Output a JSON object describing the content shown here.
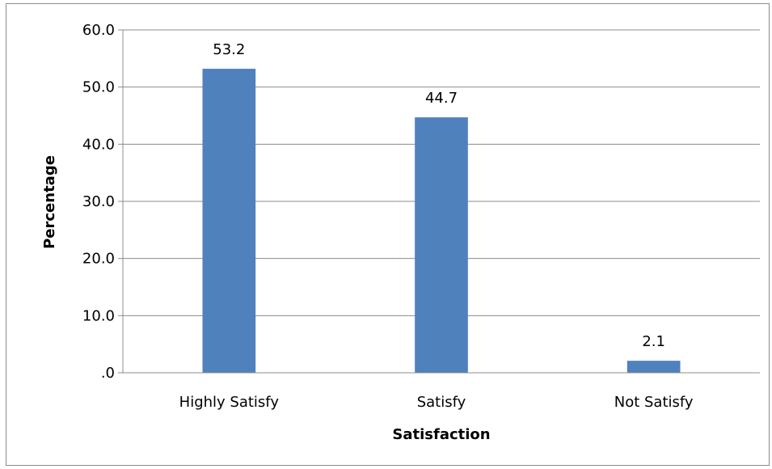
{
  "chart_data": {
    "type": "bar",
    "categories": [
      "Highly Satisfy",
      "Satisfy",
      "Not Satisfy"
    ],
    "values": [
      53.2,
      44.7,
      2.1
    ],
    "data_labels": [
      "53.2",
      "44.7",
      "2.1"
    ],
    "y_tick_labels": [
      ".0",
      "10.0",
      "20.0",
      "30.0",
      "40.0",
      "50.0",
      "60.0"
    ],
    "y_ticks": [
      0,
      10,
      20,
      30,
      40,
      50,
      60
    ],
    "xlabel": "Satisfaction",
    "ylabel": "Percentage",
    "ylim": [
      0,
      60
    ],
    "grid": true,
    "legend": "none",
    "bar_color": "#4f81bd"
  }
}
